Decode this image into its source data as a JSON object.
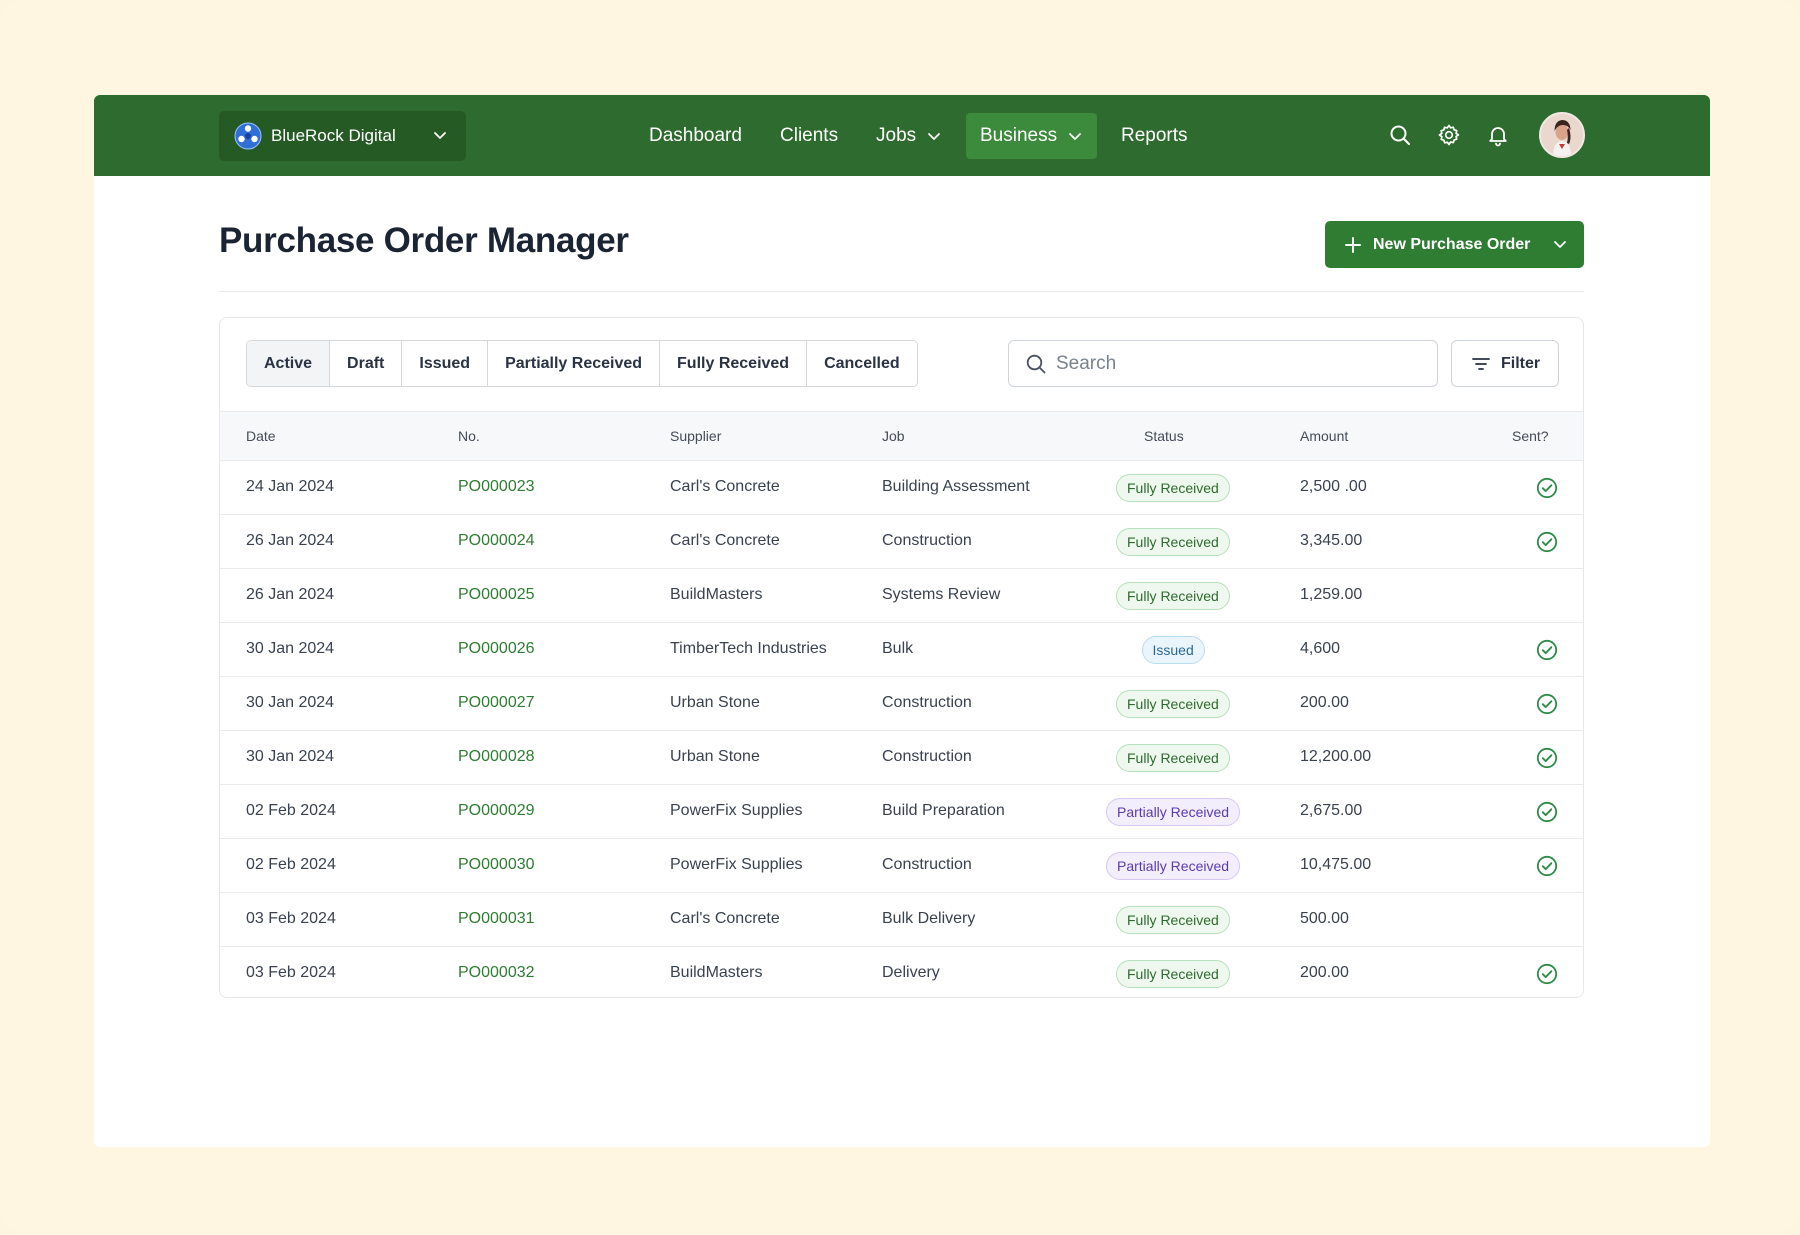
{
  "org": {
    "name": "BlueRock Digital"
  },
  "nav": {
    "items": [
      {
        "label": "Dashboard",
        "dropdown": false,
        "active": false
      },
      {
        "label": "Clients",
        "dropdown": false,
        "active": false
      },
      {
        "label": "Jobs",
        "dropdown": true,
        "active": false
      },
      {
        "label": "Business",
        "dropdown": true,
        "active": true
      },
      {
        "label": "Reports",
        "dropdown": false,
        "active": false
      }
    ],
    "icons": [
      "search-icon",
      "gear-icon",
      "bell-icon"
    ]
  },
  "page": {
    "title": "Purchase Order Manager",
    "new_button_label": "New Purchase Order"
  },
  "tabs": [
    {
      "label": "Active",
      "selected": true
    },
    {
      "label": "Draft",
      "selected": false
    },
    {
      "label": "Issued",
      "selected": false
    },
    {
      "label": "Partially Received",
      "selected": false
    },
    {
      "label": "Fully Received",
      "selected": false
    },
    {
      "label": "Cancelled",
      "selected": false
    }
  ],
  "search": {
    "placeholder": "Search",
    "value": ""
  },
  "filter_label": "Filter",
  "table": {
    "columns": [
      "Date",
      "No.",
      "Supplier",
      "Job",
      "Status",
      "Amount",
      "Sent?"
    ],
    "rows": [
      {
        "date": "24 Jan 2024",
        "no": "PO000023",
        "supplier": "Carl's Concrete",
        "job": "Building Assessment",
        "status": "Fully Received",
        "amount": "2,500 .00",
        "sent": true
      },
      {
        "date": "26 Jan 2024",
        "no": "PO000024",
        "supplier": "Carl's Concrete",
        "job": "Construction",
        "status": "Fully Received",
        "amount": "3,345.00",
        "sent": true
      },
      {
        "date": "26 Jan 2024",
        "no": "PO000025",
        "supplier": "BuildMasters",
        "job": "Systems Review",
        "status": "Fully Received",
        "amount": "1,259.00",
        "sent": false
      },
      {
        "date": "30 Jan 2024",
        "no": "PO000026",
        "supplier": "TimberTech Industries",
        "job": "Bulk",
        "status": "Issued",
        "amount": "4,600",
        "sent": true
      },
      {
        "date": "30 Jan 2024",
        "no": "PO000027",
        "supplier": "Urban Stone",
        "job": "Construction",
        "status": "Fully Received",
        "amount": "200.00",
        "sent": true
      },
      {
        "date": "30 Jan 2024",
        "no": "PO000028",
        "supplier": "Urban Stone",
        "job": "Construction",
        "status": "Fully Received",
        "amount": "12,200.00",
        "sent": true
      },
      {
        "date": "02 Feb 2024",
        "no": "PO000029",
        "supplier": "PowerFix Supplies",
        "job": "Build Preparation",
        "status": "Partially Received",
        "amount": "2,675.00",
        "sent": true
      },
      {
        "date": "02 Feb 2024",
        "no": "PO000030",
        "supplier": "PowerFix Supplies",
        "job": "Construction",
        "status": "Partially Received",
        "amount": "10,475.00",
        "sent": true
      },
      {
        "date": "03 Feb 2024",
        "no": "PO000031",
        "supplier": "Carl's Concrete",
        "job": "Bulk Delivery",
        "status": "Fully Received",
        "amount": "500.00",
        "sent": false
      },
      {
        "date": "03 Feb 2024",
        "no": "PO000032",
        "supplier": "BuildMasters",
        "job": "Delivery",
        "status": "Fully Received",
        "amount": "200.00",
        "sent": true
      }
    ]
  },
  "colors": {
    "nav_bg": "#2e6b2e",
    "accent": "#2e7d32",
    "fully_received": "#2e6b2e",
    "partially_received": "#5b3bb0",
    "issued": "#2b6a92",
    "page_bg": "#fef6e1"
  }
}
